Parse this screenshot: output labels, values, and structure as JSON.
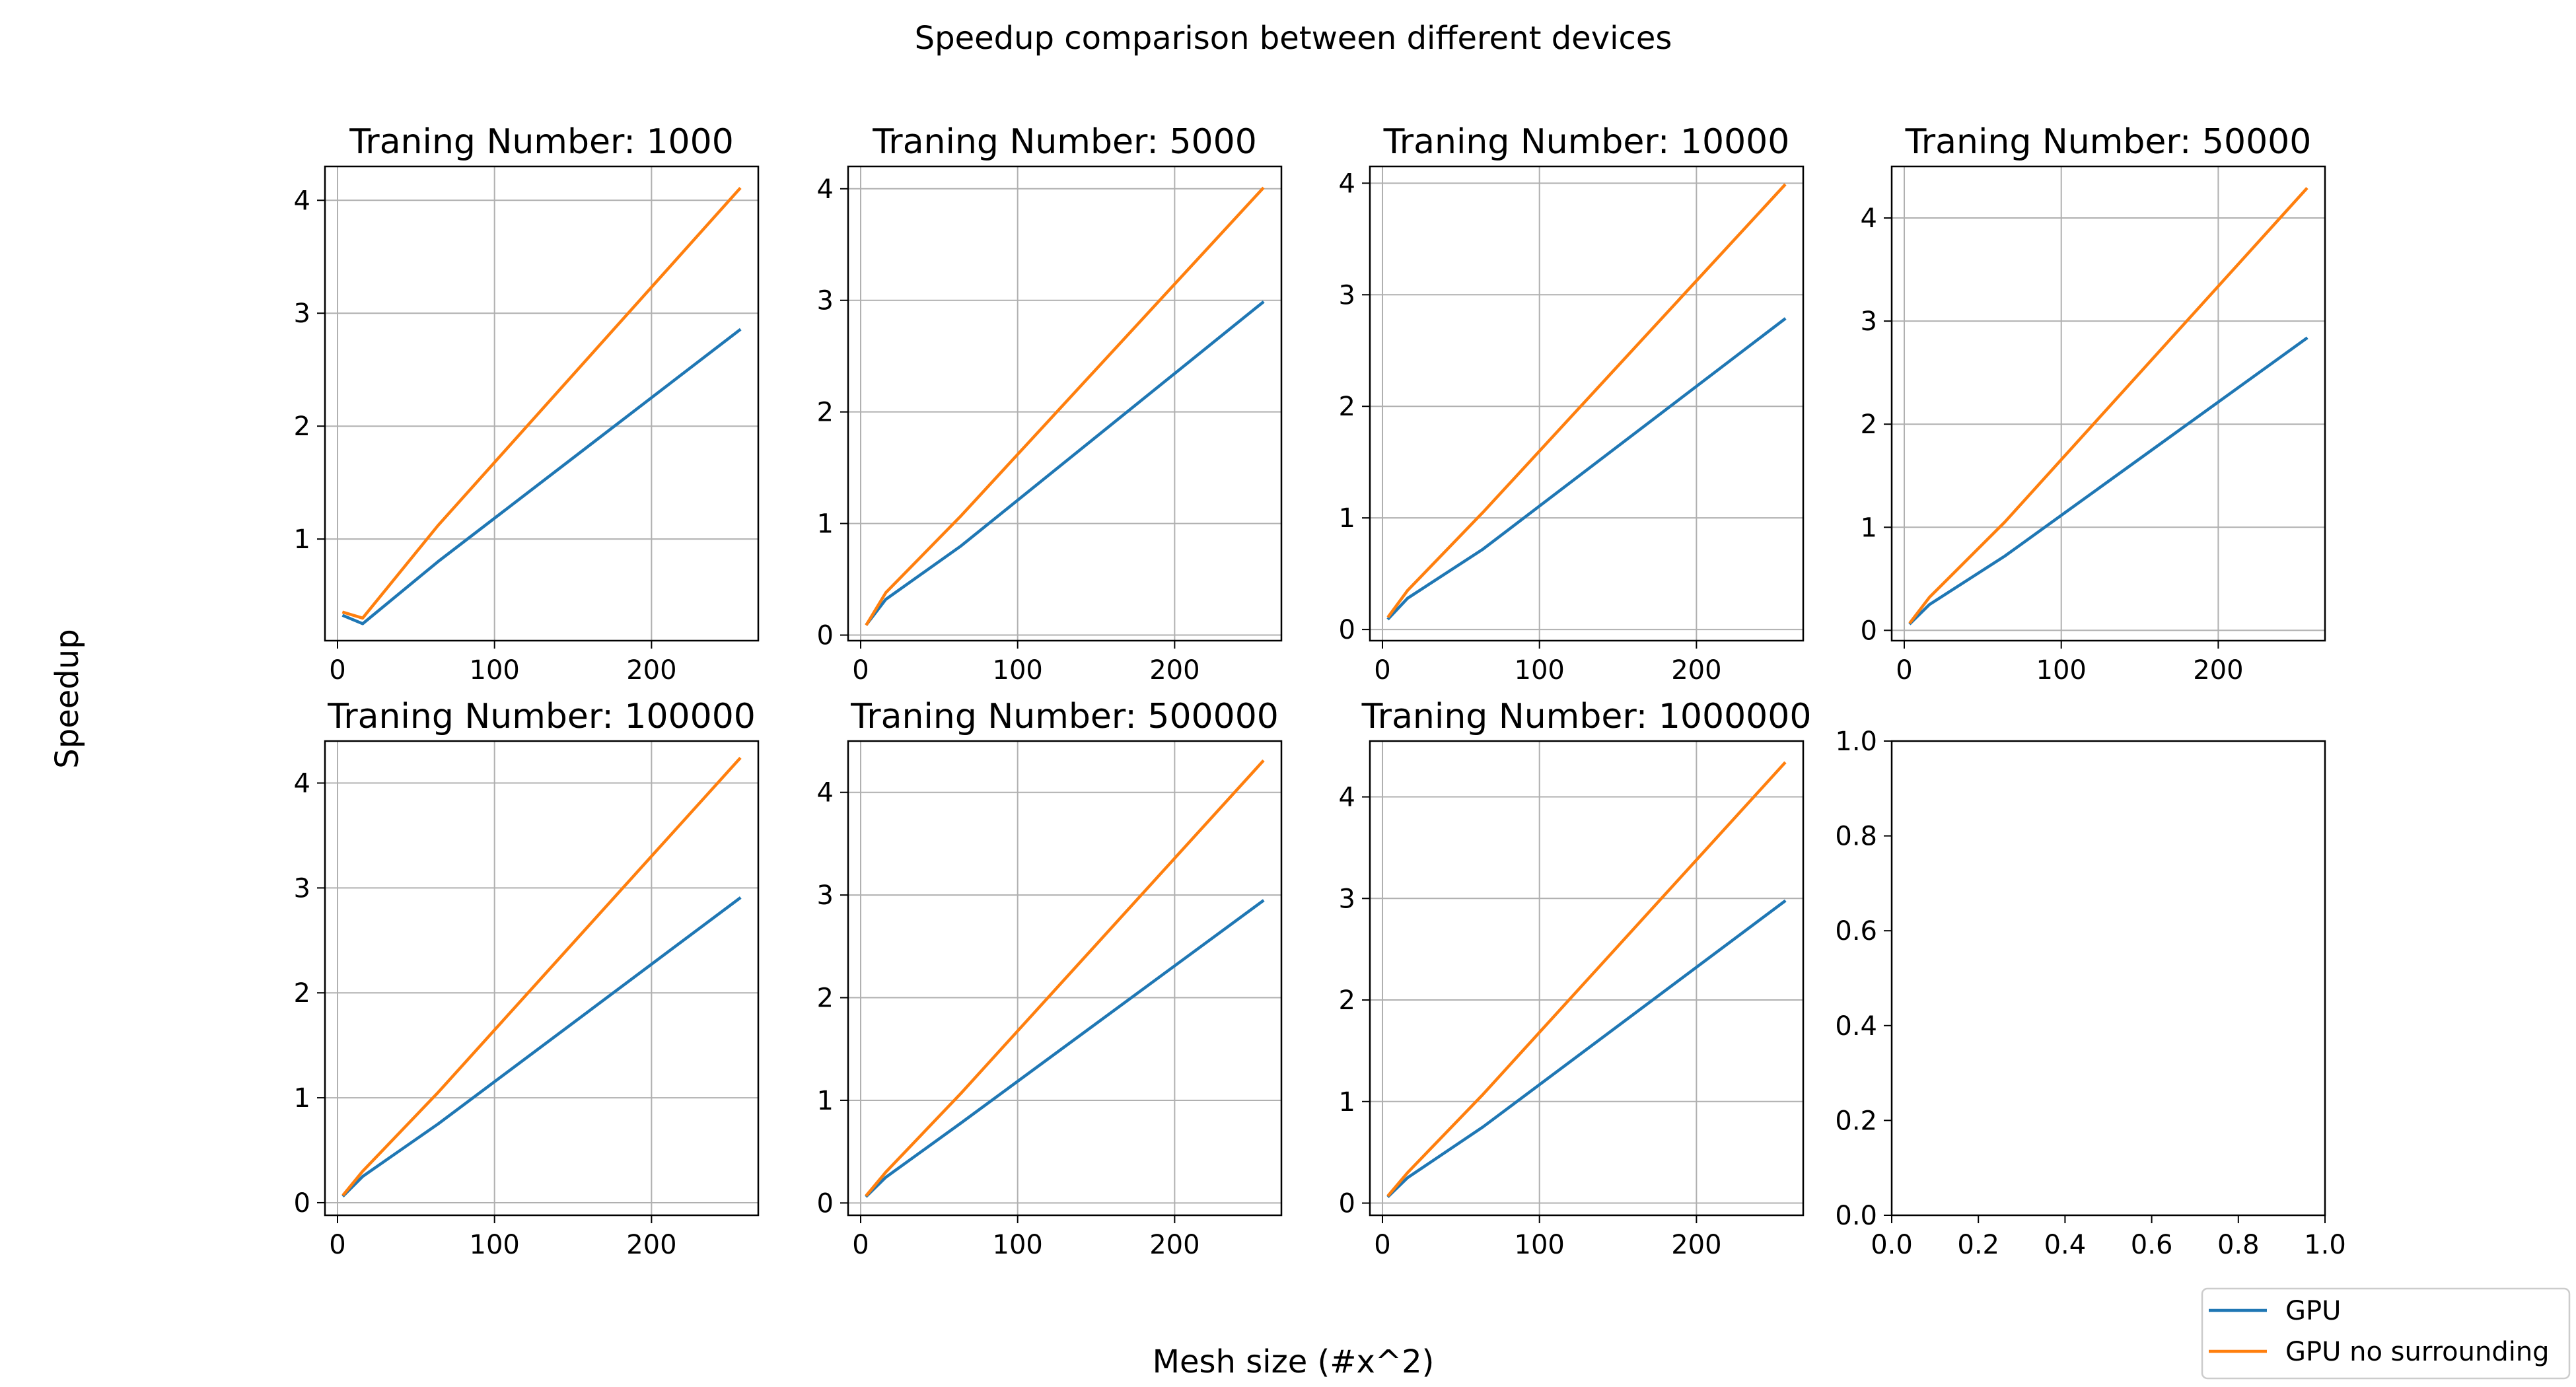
{
  "figure": {
    "suptitle": "Speedup comparison between different devices",
    "xlabel": "Mesh size (#x^2)",
    "ylabel": "Speedup"
  },
  "colors": {
    "gpu": "#1f77b4",
    "gpu_nosur": "#ff7f0e",
    "grid": "#b0b0b0"
  },
  "legend": {
    "placement": "bottom-right",
    "entries": [
      {
        "label": "GPU",
        "color": "#1f77b4"
      },
      {
        "label": "GPU no surrounding",
        "color": "#ff7f0e"
      }
    ]
  },
  "chart_data": [
    {
      "type": "line",
      "title": "Traning Number: 1000",
      "xlim": [
        -8,
        268
      ],
      "ylim": [
        0.1,
        4.3
      ],
      "grid": true,
      "xticks": [
        0,
        100,
        200
      ],
      "yticks": [
        1,
        2,
        3,
        4
      ],
      "x": [
        4,
        16,
        64,
        256
      ],
      "series": [
        {
          "name": "GPU",
          "values": [
            0.32,
            0.25,
            0.8,
            2.85
          ]
        },
        {
          "name": "GPU no surrounding",
          "values": [
            0.35,
            0.3,
            1.12,
            4.1
          ]
        }
      ]
    },
    {
      "type": "line",
      "title": "Traning Number: 5000",
      "xlim": [
        -8,
        268
      ],
      "ylim": [
        -0.05,
        4.2
      ],
      "grid": true,
      "xticks": [
        0,
        100,
        200
      ],
      "yticks": [
        0,
        1,
        2,
        3,
        4
      ],
      "x": [
        4,
        16,
        64,
        256
      ],
      "series": [
        {
          "name": "GPU",
          "values": [
            0.1,
            0.32,
            0.8,
            2.98
          ]
        },
        {
          "name": "GPU no surrounding",
          "values": [
            0.1,
            0.38,
            1.07,
            4.0
          ]
        }
      ]
    },
    {
      "type": "line",
      "title": "Traning Number: 10000",
      "xlim": [
        -8,
        268
      ],
      "ylim": [
        -0.1,
        4.15
      ],
      "grid": true,
      "xticks": [
        0,
        100,
        200
      ],
      "yticks": [
        0,
        1,
        2,
        3,
        4
      ],
      "x": [
        4,
        16,
        64,
        256
      ],
      "series": [
        {
          "name": "GPU",
          "values": [
            0.1,
            0.28,
            0.72,
            2.78
          ]
        },
        {
          "name": "GPU no surrounding",
          "values": [
            0.12,
            0.35,
            1.05,
            3.98
          ]
        }
      ]
    },
    {
      "type": "line",
      "title": "Traning Number: 50000",
      "xlim": [
        -8,
        268
      ],
      "ylim": [
        -0.1,
        4.5
      ],
      "grid": true,
      "xticks": [
        0,
        100,
        200
      ],
      "yticks": [
        0,
        1,
        2,
        3,
        4
      ],
      "x": [
        4,
        16,
        64,
        256
      ],
      "series": [
        {
          "name": "GPU",
          "values": [
            0.07,
            0.25,
            0.72,
            2.83
          ]
        },
        {
          "name": "GPU no surrounding",
          "values": [
            0.08,
            0.32,
            1.05,
            4.28
          ]
        }
      ]
    },
    {
      "type": "line",
      "title": "Traning Number: 100000",
      "xlim": [
        -8,
        268
      ],
      "ylim": [
        -0.12,
        4.4
      ],
      "grid": true,
      "xticks": [
        0,
        100,
        200
      ],
      "yticks": [
        0,
        1,
        2,
        3,
        4
      ],
      "x": [
        4,
        16,
        64,
        256
      ],
      "series": [
        {
          "name": "GPU",
          "values": [
            0.07,
            0.25,
            0.75,
            2.9
          ]
        },
        {
          "name": "GPU no surrounding",
          "values": [
            0.08,
            0.3,
            1.05,
            4.23
          ]
        }
      ]
    },
    {
      "type": "line",
      "title": "Traning Number: 500000",
      "xlim": [
        -8,
        268
      ],
      "ylim": [
        -0.12,
        4.5
      ],
      "grid": true,
      "xticks": [
        0,
        100,
        200
      ],
      "yticks": [
        0,
        1,
        2,
        3,
        4
      ],
      "x": [
        4,
        16,
        64,
        256
      ],
      "series": [
        {
          "name": "GPU",
          "values": [
            0.07,
            0.25,
            0.78,
            2.94
          ]
        },
        {
          "name": "GPU no surrounding",
          "values": [
            0.08,
            0.3,
            1.07,
            4.3
          ]
        }
      ]
    },
    {
      "type": "line",
      "title": "Traning Number: 1000000",
      "xlim": [
        -8,
        268
      ],
      "ylim": [
        -0.12,
        4.55
      ],
      "grid": true,
      "xticks": [
        0,
        100,
        200
      ],
      "yticks": [
        0,
        1,
        2,
        3,
        4
      ],
      "x": [
        4,
        16,
        64,
        256
      ],
      "series": [
        {
          "name": "GPU",
          "values": [
            0.07,
            0.25,
            0.75,
            2.97
          ]
        },
        {
          "name": "GPU no surrounding",
          "values": [
            0.08,
            0.3,
            1.07,
            4.33
          ]
        }
      ]
    },
    {
      "type": "line",
      "title": "",
      "xlim": [
        0,
        1
      ],
      "ylim": [
        0,
        1
      ],
      "grid": false,
      "xticks": [
        0.0,
        0.2,
        0.4,
        0.6,
        0.8,
        1.0
      ],
      "yticks": [
        0.0,
        0.2,
        0.4,
        0.6,
        0.8,
        1.0
      ],
      "tick_format": "1dp",
      "x": [],
      "series": []
    }
  ]
}
